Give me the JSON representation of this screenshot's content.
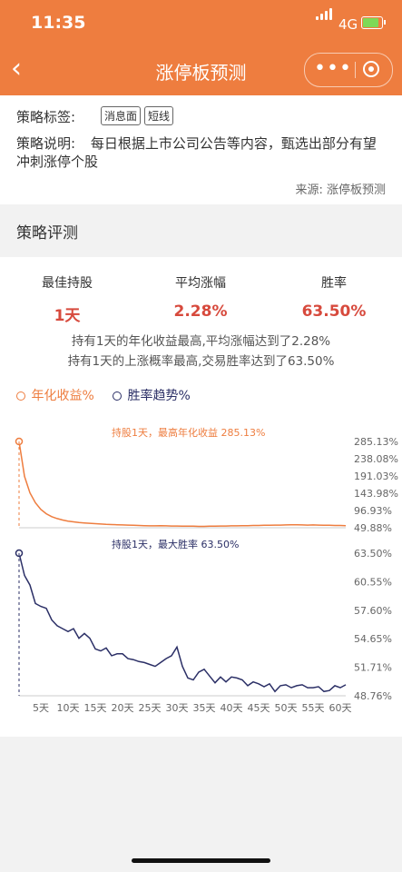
{
  "status": {
    "time": "11:35",
    "network": "4G"
  },
  "nav": {
    "title": "涨停板预测",
    "back": "‹",
    "more": "•••"
  },
  "info": {
    "tags_label": "策略标签:",
    "tags": [
      "消息面",
      "短线"
    ],
    "desc_label": "策略说明:",
    "desc_text": "每日根据上市公司公告等内容，甄选出部分有望冲刺涨停个股",
    "source": "来源: 涨停板预测"
  },
  "section": {
    "title": "策略评测"
  },
  "stats": [
    {
      "label": "最佳持股",
      "value": "1天"
    },
    {
      "label": "平均涨幅",
      "value": "2.28%"
    },
    {
      "label": "胜率",
      "value": "63.50%"
    }
  ],
  "summary": {
    "line1": "持有1天的年化收益最高,平均涨幅达到了2.28%",
    "line2": "持有1天的上涨概率最高,交易胜率达到了63.50%"
  },
  "legend": {
    "annual": "年化收益%",
    "winrate": "胜率趋势%"
  },
  "colors": {
    "brand": "#ee7d3f",
    "annual": "#ee7d3f",
    "winrate": "#2b2f66",
    "value_red": "#d74a3d"
  },
  "chart_data": [
    {
      "type": "line",
      "annotation": "持股1天，最高年化收益  285.13%",
      "ylim": [
        49.88,
        285.13
      ],
      "yticks": [
        "285.13%",
        "238.08%",
        "191.03%",
        "143.98%",
        "96.93%",
        "49.88%"
      ],
      "xlim": [
        1,
        61
      ],
      "series": [
        {
          "name": "年化收益%",
          "x": [
            1,
            2,
            3,
            4,
            5,
            6,
            7,
            8,
            9,
            10,
            11,
            12,
            13,
            14,
            15,
            16,
            17,
            18,
            19,
            20,
            21,
            22,
            23,
            24,
            25,
            26,
            27,
            28,
            29,
            30,
            31,
            32,
            33,
            34,
            35,
            36,
            37,
            38,
            39,
            40,
            41,
            42,
            43,
            44,
            45,
            46,
            47,
            48,
            49,
            50,
            51,
            52,
            53,
            54,
            55,
            56,
            57,
            58,
            59,
            60,
            61
          ],
          "values": [
            285.13,
            190,
            145,
            118,
            100,
            88,
            80,
            75,
            71,
            68,
            66,
            64,
            63,
            62,
            61,
            60,
            59,
            58.5,
            58,
            57.5,
            57,
            56.5,
            56,
            55.5,
            55,
            55,
            55.5,
            55,
            54.5,
            54.5,
            54,
            54,
            54,
            53.5,
            53.5,
            54,
            54,
            54.5,
            54.5,
            55,
            55,
            55.5,
            55.5,
            56,
            56,
            56.5,
            56.5,
            57,
            57,
            57.5,
            58,
            58,
            57.5,
            57,
            57.5,
            57,
            56.5,
            56.5,
            56,
            56,
            55.5
          ]
        }
      ]
    },
    {
      "type": "line",
      "annotation": "持股1天，最大胜率  63.50%",
      "ylim": [
        48.76,
        63.5
      ],
      "yticks": [
        "63.50%",
        "60.55%",
        "57.60%",
        "54.65%",
        "51.71%",
        "48.76%"
      ],
      "xticks": [
        "5天",
        "10天",
        "15天",
        "20天",
        "25天",
        "30天",
        "35天",
        "40天",
        "45天",
        "50天",
        "55天",
        "60天"
      ],
      "xlim": [
        1,
        61
      ],
      "series": [
        {
          "name": "胜率趋势%",
          "x": [
            1,
            2,
            3,
            4,
            5,
            6,
            7,
            8,
            9,
            10,
            11,
            12,
            13,
            14,
            15,
            16,
            17,
            18,
            19,
            20,
            21,
            22,
            23,
            24,
            25,
            26,
            27,
            28,
            29,
            30,
            31,
            32,
            33,
            34,
            35,
            36,
            37,
            38,
            39,
            40,
            41,
            42,
            43,
            44,
            45,
            46,
            47,
            48,
            49,
            50,
            51,
            52,
            53,
            54,
            55,
            56,
            57,
            58,
            59,
            60,
            61
          ],
          "values": [
            63.5,
            61.2,
            60.2,
            58.3,
            58.0,
            57.8,
            56.6,
            56.0,
            55.7,
            55.4,
            55.7,
            54.7,
            55.2,
            54.7,
            53.6,
            53.4,
            53.7,
            52.9,
            53.1,
            53.1,
            52.6,
            52.5,
            52.3,
            52.2,
            52.0,
            51.8,
            52.2,
            52.6,
            52.9,
            53.8,
            51.8,
            50.6,
            50.4,
            51.2,
            51.5,
            50.8,
            50.1,
            50.7,
            50.2,
            50.7,
            50.6,
            50.4,
            49.8,
            50.2,
            50.0,
            49.7,
            50.0,
            49.2,
            49.8,
            49.9,
            49.6,
            49.8,
            49.9,
            49.6,
            49.6,
            49.7,
            49.2,
            49.3,
            49.8,
            49.6,
            49.9
          ]
        }
      ]
    }
  ]
}
